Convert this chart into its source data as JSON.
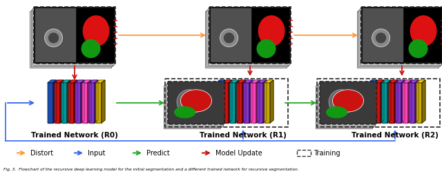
{
  "bg_color": "#ffffff",
  "layer_colors": [
    "#1a4aaa",
    "#CC1111",
    "#009999",
    "#CC1111",
    "#8833CC",
    "#FF44BB",
    "#8833CC",
    "#CCAA00"
  ],
  "orange": "#FF9933",
  "blue": "#3366EE",
  "green": "#22AA22",
  "red": "#CC1111",
  "network_labels": [
    "Trained Network (R0)",
    "Trained Network (R1)",
    "Trained Network (R2)"
  ],
  "legend_labels": [
    "Distort",
    "Input",
    "Predict",
    "Model Update",
    "Training"
  ],
  "legend_colors": [
    "#FF9933",
    "#3366EE",
    "#22AA22",
    "#CC1111",
    "#333333"
  ],
  "caption": "Fig. 3.  Flowchart of the recursive deep learning model for the initial segmentation and a different trained network for recursive segmentation."
}
